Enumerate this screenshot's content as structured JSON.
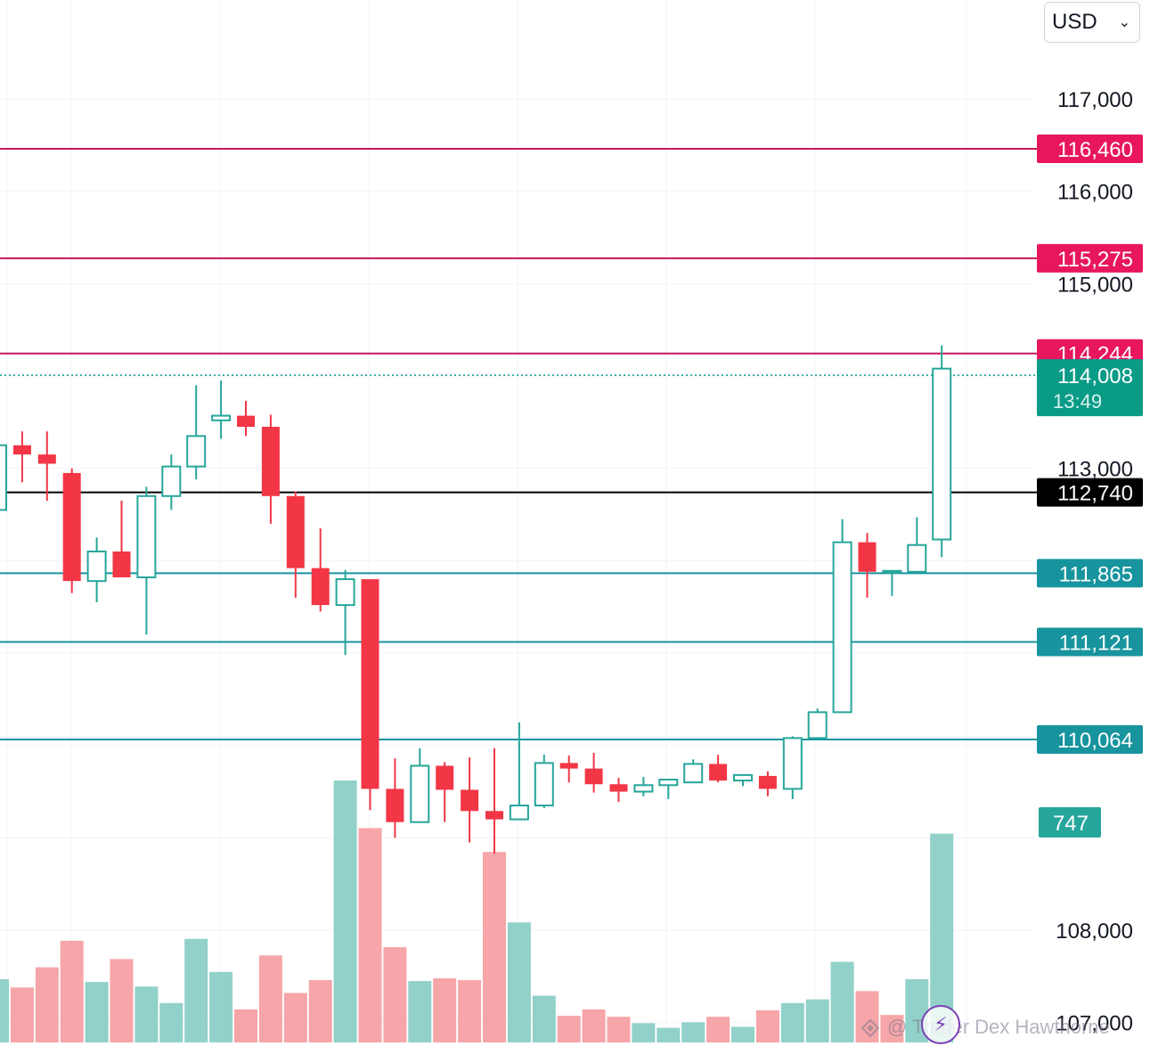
{
  "currency": {
    "selected": "USD",
    "chevron_icon": "chevron-down-icon"
  },
  "price_axis": {
    "ticks": [
      {
        "value": 117000,
        "label": "117,000",
        "obscured": false
      },
      {
        "value": 116000,
        "label": "116,000",
        "obscured": false
      },
      {
        "value": 115000,
        "label": "115,000",
        "obscured": false
      },
      {
        "value": 113000,
        "label": "113,000",
        "obscured": false
      },
      {
        "value": 108000,
        "label": "108,000",
        "obscured": false
      },
      {
        "value": 107000,
        "label": "107,000",
        "obscured": false
      }
    ]
  },
  "watermark": {
    "text": "@ Trader Dex Hawthorne",
    "icon": "lightning-bolt-icon",
    "logo_icon": "diamond-logo-icon"
  },
  "chart_data": {
    "type": "candlestick",
    "title": "",
    "y_range": [
      106800,
      117600
    ],
    "colors": {
      "up": "#26a69a",
      "down": "#f23645",
      "volume_up": "#91d1c9",
      "volume_down": "#f6a5a8",
      "resistance": "#c2185b",
      "support": "#17949e",
      "current": "#0a9b87",
      "reference": "#000000"
    },
    "candles": [
      {
        "o": 112550,
        "h": 113300,
        "l": 112550,
        "c": 113250
      },
      {
        "o": 113250,
        "h": 113400,
        "l": 112850,
        "c": 113150
      },
      {
        "o": 113150,
        "h": 113400,
        "l": 112650,
        "c": 113050
      },
      {
        "o": 112950,
        "h": 113000,
        "l": 111650,
        "c": 111780
      },
      {
        "o": 111780,
        "h": 112250,
        "l": 111550,
        "c": 112100
      },
      {
        "o": 112100,
        "h": 112650,
        "l": 111820,
        "c": 111820
      },
      {
        "o": 111820,
        "h": 112800,
        "l": 111200,
        "c": 112700
      },
      {
        "o": 112700,
        "h": 113150,
        "l": 112550,
        "c": 113020
      },
      {
        "o": 113020,
        "h": 113900,
        "l": 112880,
        "c": 113350
      },
      {
        "o": 113520,
        "h": 113950,
        "l": 113320,
        "c": 113570
      },
      {
        "o": 113570,
        "h": 113730,
        "l": 113350,
        "c": 113450
      },
      {
        "o": 113450,
        "h": 113580,
        "l": 112400,
        "c": 112700
      },
      {
        "o": 112700,
        "h": 112750,
        "l": 111600,
        "c": 111920
      },
      {
        "o": 111920,
        "h": 112350,
        "l": 111450,
        "c": 111520
      },
      {
        "o": 111520,
        "h": 111900,
        "l": 110980,
        "c": 111800
      },
      {
        "o": 111800,
        "h": 111800,
        "l": 109300,
        "c": 109530
      },
      {
        "o": 109530,
        "h": 109860,
        "l": 109000,
        "c": 109170
      },
      {
        "o": 109170,
        "h": 109970,
        "l": 109190,
        "c": 109780
      },
      {
        "o": 109780,
        "h": 109820,
        "l": 109170,
        "c": 109520
      },
      {
        "o": 109520,
        "h": 109870,
        "l": 108950,
        "c": 109290
      },
      {
        "o": 109290,
        "h": 109970,
        "l": 108830,
        "c": 109200
      },
      {
        "o": 109200,
        "h": 110250,
        "l": 109200,
        "c": 109350
      },
      {
        "o": 109350,
        "h": 109900,
        "l": 109320,
        "c": 109810
      },
      {
        "o": 109810,
        "h": 109890,
        "l": 109600,
        "c": 109750
      },
      {
        "o": 109750,
        "h": 109920,
        "l": 109490,
        "c": 109580
      },
      {
        "o": 109580,
        "h": 109650,
        "l": 109390,
        "c": 109500
      },
      {
        "o": 109500,
        "h": 109660,
        "l": 109450,
        "c": 109570
      },
      {
        "o": 109570,
        "h": 109630,
        "l": 109420,
        "c": 109630
      },
      {
        "o": 109600,
        "h": 109850,
        "l": 109640,
        "c": 109800
      },
      {
        "o": 109800,
        "h": 109900,
        "l": 109600,
        "c": 109620
      },
      {
        "o": 109620,
        "h": 109680,
        "l": 109560,
        "c": 109680
      },
      {
        "o": 109670,
        "h": 109720,
        "l": 109450,
        "c": 109530
      },
      {
        "o": 109530,
        "h": 110100,
        "l": 109420,
        "c": 110080
      },
      {
        "o": 110080,
        "h": 110400,
        "l": 110080,
        "c": 110360
      },
      {
        "o": 110360,
        "h": 112450,
        "l": 110360,
        "c": 112200
      },
      {
        "o": 112200,
        "h": 112300,
        "l": 111600,
        "c": 111880
      },
      {
        "o": 111880,
        "h": 111890,
        "l": 111620,
        "c": 111890
      },
      {
        "o": 111880,
        "h": 112470,
        "l": 111880,
        "c": 112170
      },
      {
        "o": 112230,
        "h": 114330,
        "l": 112040,
        "c": 114080
      }
    ],
    "volume": [
      {
        "v": 690,
        "up": true
      },
      {
        "v": 600,
        "up": false
      },
      {
        "v": 820,
        "up": false
      },
      {
        "v": 1110,
        "up": false
      },
      {
        "v": 660,
        "up": true
      },
      {
        "v": 910,
        "up": false
      },
      {
        "v": 610,
        "up": true
      },
      {
        "v": 430,
        "up": true
      },
      {
        "v": 1130,
        "up": true
      },
      {
        "v": 770,
        "up": true
      },
      {
        "v": 360,
        "up": false
      },
      {
        "v": 950,
        "up": false
      },
      {
        "v": 540,
        "up": false
      },
      {
        "v": 680,
        "up": false
      },
      {
        "v": 2860,
        "up": true
      },
      {
        "v": 2340,
        "up": false
      },
      {
        "v": 1040,
        "up": false
      },
      {
        "v": 670,
        "up": true
      },
      {
        "v": 700,
        "up": false
      },
      {
        "v": 680,
        "up": false
      },
      {
        "v": 2080,
        "up": false
      },
      {
        "v": 1310,
        "up": true
      },
      {
        "v": 510,
        "up": true
      },
      {
        "v": 290,
        "up": false
      },
      {
        "v": 360,
        "up": false
      },
      {
        "v": 280,
        "up": false
      },
      {
        "v": 210,
        "up": true
      },
      {
        "v": 160,
        "up": true
      },
      {
        "v": 220,
        "up": true
      },
      {
        "v": 280,
        "up": false
      },
      {
        "v": 170,
        "up": true
      },
      {
        "v": 350,
        "up": false
      },
      {
        "v": 430,
        "up": true
      },
      {
        "v": 470,
        "up": true
      },
      {
        "v": 880,
        "up": true
      },
      {
        "v": 560,
        "up": false
      },
      {
        "v": 300,
        "up": false
      },
      {
        "v": 690,
        "up": true
      },
      {
        "v": 2280,
        "up": true
      }
    ],
    "volume_max": 3300,
    "volume_label": "747",
    "levels": [
      {
        "value": 116460,
        "label": "116,460",
        "kind": "resistance"
      },
      {
        "value": 115275,
        "label": "115,275",
        "kind": "resistance"
      },
      {
        "value": 114244,
        "label": "114,244",
        "kind": "resistance"
      },
      {
        "value": 112740,
        "label": "112,740",
        "kind": "reference"
      },
      {
        "value": 111865,
        "label": "111,865",
        "kind": "support"
      },
      {
        "value": 111121,
        "label": "111,121",
        "kind": "support"
      },
      {
        "value": 110064,
        "label": "110,064",
        "kind": "support"
      }
    ],
    "current_price": {
      "value": 114008,
      "label": "114,008",
      "countdown": "13:49"
    }
  }
}
